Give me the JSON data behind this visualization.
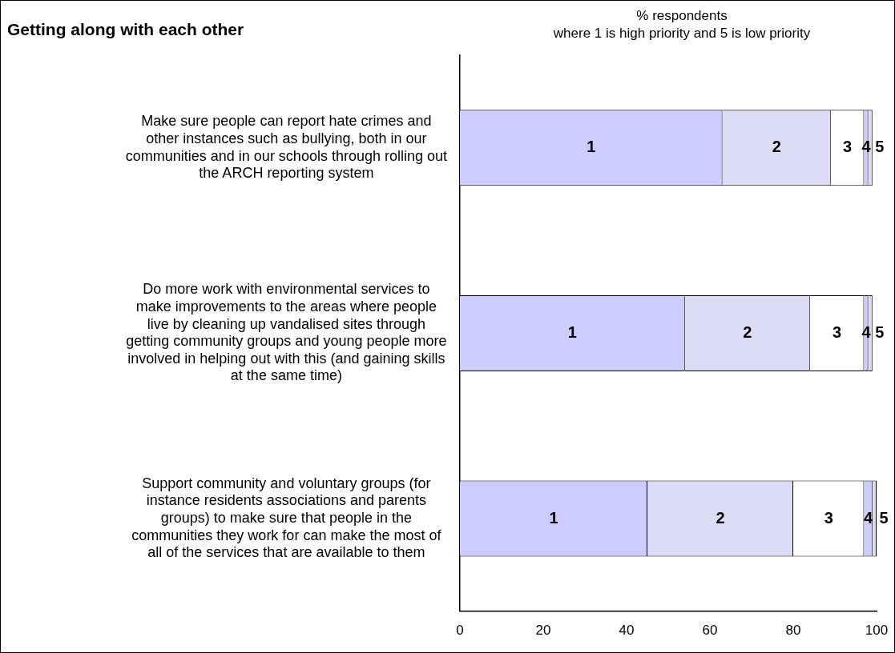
{
  "chart_data": {
    "type": "bar",
    "orientation": "horizontal",
    "stacked": true,
    "title": "Getting along with each other",
    "xlabel": "% respondents\nwhere 1 is high priority and 5 is low priority",
    "categories": [
      "Make sure people can report hate crimes and other instances such as bullying, both in our communities and in our schools through rolling out the ARCH reporting system",
      "Do more work with environmental services to make improvements to the areas where people live by cleaning up vandalised sites through getting community groups and young people more involved in helping out with this (and gaining skills at the same time)",
      "Support community and voluntary groups (for instance residents associations and parents groups) to make sure that people in the communities they work for can make the most of all of the services that are available to them"
    ],
    "series": [
      {
        "name": "1",
        "color": "#ccccff",
        "values": [
          63,
          54,
          45
        ]
      },
      {
        "name": "2",
        "color": "#dcdcf4",
        "values": [
          26,
          30,
          35
        ]
      },
      {
        "name": "3",
        "color": "#ffffff",
        "values": [
          8,
          13,
          17
        ]
      },
      {
        "name": "4",
        "color": "#ccccff",
        "values": [
          1,
          1,
          2
        ]
      },
      {
        "name": "5",
        "color": "#dcdcf4",
        "values": [
          1,
          1,
          1
        ]
      }
    ],
    "xlim": [
      0,
      100
    ],
    "xticks": [
      0,
      20,
      40,
      60,
      80,
      100
    ],
    "grid": false,
    "legend": false
  }
}
